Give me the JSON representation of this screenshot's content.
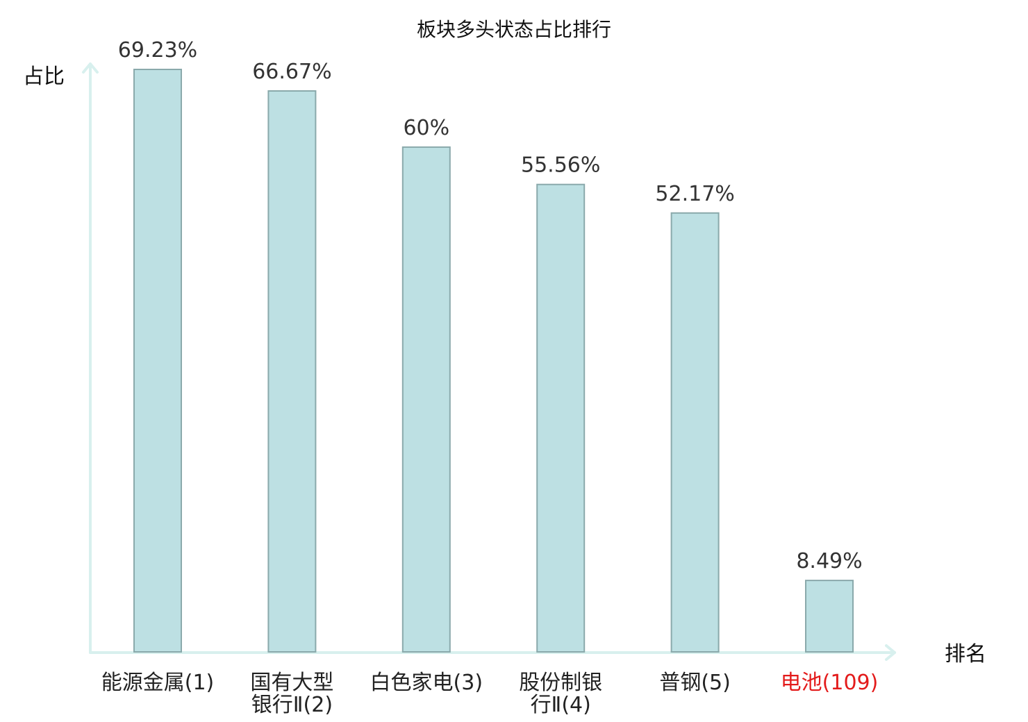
{
  "chart_data": {
    "type": "bar",
    "title": "板块多头状态占比排行",
    "ylabel": "占比",
    "xlabel": "排名",
    "categories": [
      {
        "lines": [
          "能源金属(1)"
        ],
        "name": "能源金属",
        "rank": 1,
        "color": "#222222"
      },
      {
        "lines": [
          "国有大型",
          "银行Ⅱ(2)"
        ],
        "name": "国有大型银行Ⅱ",
        "rank": 2,
        "color": "#222222"
      },
      {
        "lines": [
          "白色家电(3)"
        ],
        "name": "白色家电",
        "rank": 3,
        "color": "#222222"
      },
      {
        "lines": [
          "股份制银",
          "行Ⅱ(4)"
        ],
        "name": "股份制银行Ⅱ",
        "rank": 4,
        "color": "#222222"
      },
      {
        "lines": [
          "普钢(5)"
        ],
        "name": "普钢",
        "rank": 5,
        "color": "#222222"
      },
      {
        "lines": [
          "电池(109)"
        ],
        "name": "电池",
        "rank": 109,
        "color": "#e31b1b"
      }
    ],
    "values": [
      69.23,
      66.67,
      60,
      55.56,
      52.17,
      8.49
    ],
    "value_labels": [
      "69.23%",
      "66.67%",
      "60%",
      "55.56%",
      "52.17%",
      "8.49%"
    ],
    "ylim": [
      0,
      69.23
    ],
    "grid": false,
    "colors": {
      "bar_fill": "#bde0e3",
      "bar_stroke": "#8aa9ab",
      "axis": "#d8f0ee",
      "highlight": "#e31b1b"
    }
  }
}
